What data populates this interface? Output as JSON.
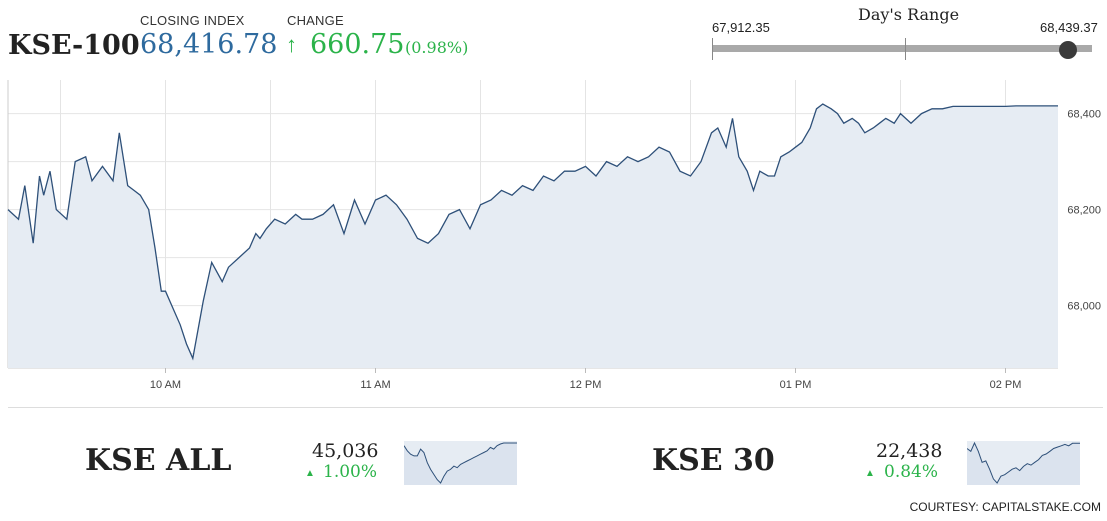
{
  "header": {
    "index_name": "KSE-100",
    "closing_label": "CLOSING INDEX",
    "closing_value": "68,416.78",
    "change_label": "CHANGE",
    "change_arrow": "↑",
    "change_value": "660.75",
    "change_pct": "(0.98%)"
  },
  "day_range": {
    "title": "Day's Range",
    "low_label": "67,912.35",
    "high_label": "68,439.37",
    "low": 67912.35,
    "high": 68439.37,
    "current": 68416.78
  },
  "colors": {
    "line": "#2e5079",
    "fill": "#e6ecf3",
    "grid": "#e4e4e4",
    "up": "#2bb34a",
    "value": "#2e6a9e"
  },
  "chart_data": [
    {
      "type": "area",
      "title": "KSE-100",
      "xlabel": "",
      "ylabel": "",
      "x_ticks": [
        "10 AM",
        "11 AM",
        "12 PM",
        "01 PM",
        "02 PM"
      ],
      "y_ticks": [
        "68,000",
        "68,200",
        "68,400"
      ],
      "ylim": [
        67870,
        68470
      ],
      "x_range_minutes": [
        9.25,
        14.25
      ],
      "grid": true,
      "series": [
        {
          "x": [
            9.25,
            9.3,
            9.33,
            9.37,
            9.4,
            9.42,
            9.45,
            9.48,
            9.53,
            9.57,
            9.62,
            9.65,
            9.7,
            9.75,
            9.78,
            9.82,
            9.85,
            9.88,
            9.92,
            9.95,
            9.98,
            10.0,
            10.03,
            10.07,
            10.1,
            10.13,
            10.18,
            10.22,
            10.27,
            10.3,
            10.35,
            10.4,
            10.43,
            10.45,
            10.48,
            10.52,
            10.57,
            10.62,
            10.65,
            10.7,
            10.75,
            10.8,
            10.85,
            10.9,
            10.95,
            11.0,
            11.05,
            11.1,
            11.15,
            11.2,
            11.25,
            11.3,
            11.35,
            11.4,
            11.45,
            11.5,
            11.55,
            11.6,
            11.65,
            11.7,
            11.75,
            11.8,
            11.85,
            11.9,
            11.95,
            12.0,
            12.05,
            12.1,
            12.15,
            12.2,
            12.25,
            12.3,
            12.35,
            12.4,
            12.45,
            12.5,
            12.55,
            12.6,
            12.63,
            12.67,
            12.7,
            12.73,
            12.77,
            12.8,
            12.83,
            12.87,
            12.9,
            12.93,
            12.97,
            13.0,
            13.03,
            13.07,
            13.1,
            13.13,
            13.17,
            13.2,
            13.23,
            13.27,
            13.3,
            13.33,
            13.37,
            13.4,
            13.43,
            13.47,
            13.5,
            13.55,
            13.6,
            13.65,
            13.7,
            13.75,
            13.8,
            13.85,
            13.9,
            13.95,
            14.0,
            14.05,
            14.1,
            14.15,
            14.2,
            14.25
          ],
          "y": [
            68200,
            68180,
            68250,
            68130,
            68270,
            68230,
            68280,
            68200,
            68180,
            68300,
            68310,
            68260,
            68290,
            68260,
            68360,
            68250,
            68240,
            68230,
            68200,
            68120,
            68030,
            68030,
            68000,
            67960,
            67920,
            67890,
            68010,
            68090,
            68050,
            68080,
            68100,
            68120,
            68150,
            68140,
            68160,
            68180,
            68170,
            68190,
            68180,
            68180,
            68190,
            68210,
            68150,
            68220,
            68170,
            68220,
            68230,
            68210,
            68180,
            68140,
            68130,
            68150,
            68190,
            68200,
            68160,
            68210,
            68220,
            68240,
            68230,
            68250,
            68240,
            68270,
            68260,
            68280,
            68280,
            68290,
            68270,
            68300,
            68290,
            68310,
            68300,
            68310,
            68330,
            68320,
            68280,
            68270,
            68300,
            68360,
            68370,
            68330,
            68390,
            68310,
            68280,
            68240,
            68280,
            68270,
            68270,
            68310,
            68320,
            68330,
            68340,
            68370,
            68410,
            68420,
            68410,
            68400,
            68380,
            68390,
            68380,
            68360,
            68370,
            68380,
            68390,
            68380,
            68400,
            68380,
            68400,
            68410,
            68410,
            68415,
            68415,
            68415,
            68415,
            68415,
            68415,
            68416,
            68416,
            68416,
            68416,
            68416
          ]
        }
      ]
    },
    {
      "type": "area",
      "title": "KSE ALL",
      "series": [
        {
          "y": [
            45020,
            44990,
            44970,
            44960,
            44960,
            45000,
            44980,
            44920,
            44880,
            44850,
            44820,
            44800,
            44840,
            44870,
            44880,
            44900,
            44890,
            44910,
            44920,
            44930,
            44940,
            44950,
            44960,
            44970,
            44980,
            44990,
            45010,
            45000,
            45020,
            45030,
            45036,
            45036,
            45036,
            45036,
            45036
          ]
        }
      ]
    },
    {
      "type": "area",
      "title": "KSE 30",
      "series": [
        {
          "y": [
            22400,
            22380,
            22440,
            22380,
            22300,
            22310,
            22250,
            22180,
            22150,
            22200,
            22210,
            22230,
            22250,
            22260,
            22240,
            22270,
            22290,
            22280,
            22300,
            22320,
            22350,
            22360,
            22380,
            22400,
            22410,
            22420,
            22430,
            22420,
            22438,
            22438,
            22438
          ]
        }
      ]
    }
  ],
  "kse_all": {
    "name": "KSE ALL",
    "value": "45,036",
    "arrow": "▲",
    "change": "1.00%"
  },
  "kse_30": {
    "name": "KSE 30",
    "value": "22,438",
    "arrow": "▲",
    "change": "0.84%"
  },
  "credit": "COURTESY: CAPITALSTAKE.COM"
}
